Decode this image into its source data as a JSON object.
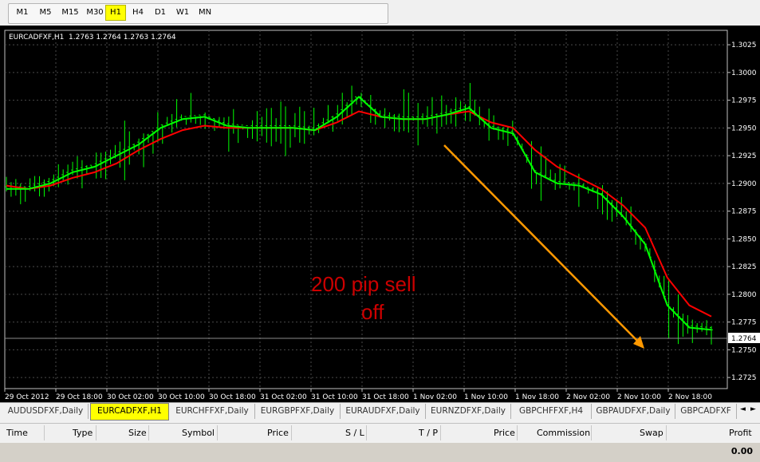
{
  "toolbar": {
    "timeframes": [
      "M1",
      "M5",
      "M15",
      "M30",
      "H1",
      "H4",
      "D1",
      "W1",
      "MN"
    ],
    "active_timeframe": "H1"
  },
  "chart": {
    "header": "EURCADFXF,H1  1.2763 1.2764 1.2763 1.2764",
    "current_price_label": "1.2764",
    "annotation_line1": "200 pip sell",
    "annotation_line2": "off",
    "price_axis_labels": [
      "1.3025",
      "1.3000",
      "1.2975",
      "1.2950",
      "1.2925",
      "1.2900",
      "1.2875",
      "1.2850",
      "1.2825",
      "1.2800",
      "1.2775",
      "1.2750",
      "1.2725"
    ],
    "time_axis_labels": [
      "29 Oct 2012",
      "29 Oct 18:00",
      "30 Oct 02:00",
      "30 Oct 10:00",
      "30 Oct 18:00",
      "31 Oct 02:00",
      "31 Oct 10:00",
      "31 Oct 18:00",
      "1 Nov 02:00",
      "1 Nov 10:00",
      "1 Nov 18:00",
      "2 Nov 02:00",
      "2 Nov 10:00",
      "2 Nov 18:00"
    ],
    "colors": {
      "background": "#000000",
      "grid": "#4a4a4a",
      "price_bars": "#00ff00",
      "fast_ma": "#00ff00",
      "slow_ma": "#ff0000",
      "annotation_text": "#cc0000",
      "arrow": "#ff9900"
    }
  },
  "chart_data": {
    "type": "line",
    "series": [
      {
        "values": [
          1.2895,
          1.2895,
          1.29,
          1.291,
          1.2915,
          1.2925,
          1.2935,
          1.295,
          1.2958,
          1.296,
          1.2952,
          1.295,
          1.295,
          1.295,
          1.2948,
          1.296,
          1.2978,
          1.296,
          1.2958,
          1.2958,
          1.2962,
          1.2968,
          1.295,
          1.2945,
          1.291,
          1.29,
          1.2898,
          1.289,
          1.287,
          1.2845,
          1.279,
          1.277,
          1.2768
        ]
      },
      {
        "values": [
          1.2898,
          1.2895,
          1.2898,
          1.2905,
          1.291,
          1.2918,
          1.293,
          1.294,
          1.2948,
          1.2952,
          1.295,
          1.295,
          1.295,
          1.295,
          1.2948,
          1.2955,
          1.2965,
          1.296,
          1.2958,
          1.2958,
          1.2962,
          1.2965,
          1.2955,
          1.295,
          1.293,
          1.2915,
          1.2905,
          1.2895,
          1.288,
          1.286,
          1.2815,
          1.279,
          1.278
        ]
      }
    ],
    "ylim": [
      1.2715,
      1.3038
    ]
  },
  "symbol_tabs": {
    "items": [
      "AUDUSDFXF,Daily",
      "EURCADFXF,H1",
      "EURCHFFXF,Daily",
      "EURGBPFXF,Daily",
      "EURAUDFXF,Daily",
      "EURNZDFXF,Daily",
      "GBPCHFFXF,H4",
      "GBPAUDFXF,Daily",
      "GBPCADFXF"
    ],
    "active": "EURCADFXF,H1",
    "left_arrow": "◄",
    "right_arrow": "►"
  },
  "terminal": {
    "columns": [
      "Time",
      "Type",
      "Size",
      "Symbol",
      "Price",
      "S / L",
      "T / P",
      "Price",
      "Commission",
      "Swap",
      "Profit"
    ],
    "profit_total": "0.00"
  }
}
